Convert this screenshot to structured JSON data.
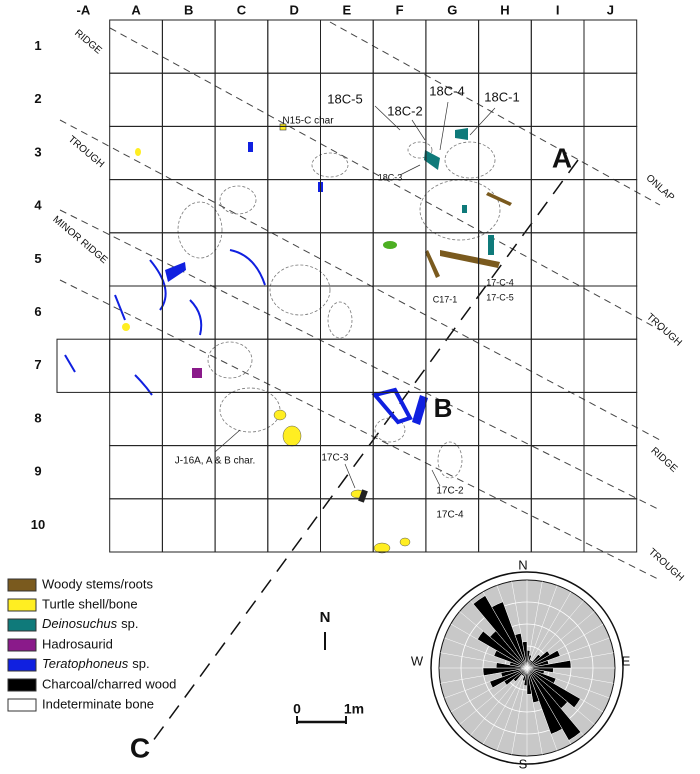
{
  "grid": {
    "columns": [
      "-A",
      "A",
      "B",
      "C",
      "D",
      "E",
      "F",
      "G",
      "H",
      "I",
      "J"
    ],
    "rows": [
      "1",
      "2",
      "3",
      "4",
      "5",
      "6",
      "7",
      "8",
      "9",
      "10"
    ]
  },
  "zones": {
    "left": [
      "RIDGE",
      "TROUGH",
      "MINOR RIDGE"
    ],
    "right": [
      "ONLAP",
      "TROUGH",
      "RIDGE",
      "TROUGH"
    ]
  },
  "specimens": [
    "18C-5",
    "18C-2",
    "18C-4",
    "18C-1",
    "N15-C char",
    "18C-3",
    "17-C-4",
    "C17-1",
    "17-C-5",
    "J-16A, A & B char.",
    "17C-3",
    "17C-2",
    "17C-4"
  ],
  "sections": [
    "A",
    "B",
    "C"
  ],
  "legend": [
    {
      "label": "Woody stems/roots"
    },
    {
      "label": "Turtle shell/bone"
    },
    {
      "genus": "Deinosuchus",
      "label": "sp."
    },
    {
      "label": "Hadrosaurid"
    },
    {
      "genus": "Teratophoneus",
      "label": "sp."
    },
    {
      "label": "Charcoal/charred wood"
    },
    {
      "label": "Indeterminate bone"
    }
  ],
  "north_arrow": "N",
  "scale": {
    "start": "0",
    "end": "1m"
  },
  "rose": {
    "n": "N",
    "e": "E",
    "s": "S",
    "w": "W"
  }
}
